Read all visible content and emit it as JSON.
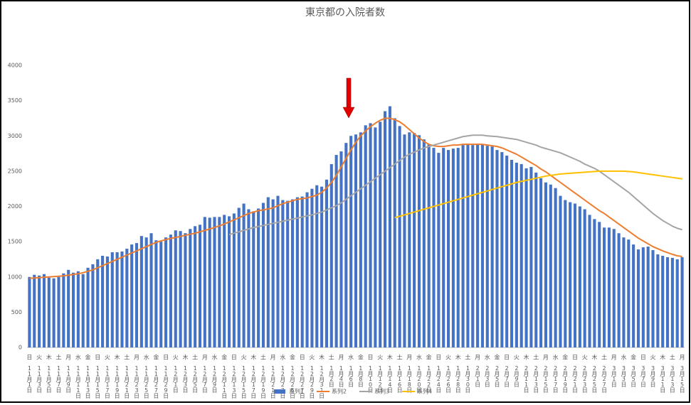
{
  "chart_data": {
    "type": "bar-line",
    "title": "東京都の入院者数",
    "categories": [
      "11月1日",
      null,
      "11月3日",
      null,
      "11月5日",
      null,
      "11月7日",
      null,
      "11月9日",
      null,
      "11月11日",
      null,
      "11月13日",
      null,
      "11月15日",
      null,
      "11月17日",
      null,
      "11月19日",
      null,
      "11月21日",
      null,
      "11月23日",
      null,
      "11月25日",
      null,
      "11月27日",
      null,
      "11月29日",
      null,
      "12月1日",
      null,
      "12月3日",
      null,
      "12月5日",
      null,
      "12月7日",
      null,
      "12月9日",
      null,
      "12月11日",
      null,
      "12月13日",
      null,
      "12月15日",
      null,
      "12月17日",
      null,
      "12月19日",
      null,
      "12月21日",
      null,
      "12月23日",
      null,
      "12月25日",
      null,
      "12月27日",
      null,
      "12月29日",
      null,
      "12月31日",
      null,
      "1月2日",
      null,
      "1月4日",
      null,
      "1月6日",
      null,
      "1月8日",
      null,
      "1月10日",
      null,
      "1月12日",
      null,
      "1月14日",
      null,
      "1月16日",
      null,
      "1月18日",
      null,
      "1月20日",
      null,
      "1月22日",
      null,
      "1月24日",
      null,
      "1月26日",
      null,
      "1月28日",
      null,
      "1月30日",
      null,
      "2月1日",
      null,
      "2月3日",
      null,
      "2月5日",
      null,
      "2月7日",
      null,
      "2月9日",
      null,
      "2月11日",
      null,
      "2月13日",
      null,
      "2月15日",
      null,
      "2月17日",
      null,
      "2月19日",
      null,
      "2月21日",
      null,
      "2月23日",
      null,
      "2月25日",
      null,
      "2月27日",
      null,
      "3月1日",
      null,
      "3月3日",
      null,
      "3月5日",
      null,
      "3月7日",
      null,
      "3月9日",
      null,
      "3月11日",
      null,
      "3月13日",
      null,
      "3月15日"
    ],
    "weekdays": [
      "日",
      null,
      "火",
      null,
      "木",
      null,
      "土",
      null,
      "月",
      null,
      "水",
      null,
      "金",
      null,
      "日",
      null,
      "火",
      null,
      "木",
      null,
      "土",
      null,
      "月",
      null,
      "水",
      null,
      "金",
      null,
      "日",
      null,
      "火",
      null,
      "木",
      null,
      "土",
      null,
      "月",
      null,
      "水",
      null,
      "金",
      null,
      "日",
      null,
      "火",
      null,
      "木",
      null,
      "土",
      null,
      "月",
      null,
      "水",
      null,
      "金",
      null,
      "日",
      null,
      "火",
      null,
      "木",
      null,
      "土",
      null,
      "月",
      null,
      "水",
      null,
      "金",
      null,
      "日",
      null,
      "火",
      null,
      "木",
      null,
      "土",
      null,
      "月",
      null,
      "水",
      null,
      "金",
      null,
      "日",
      null,
      "火",
      null,
      "木",
      null,
      "土",
      null,
      "月",
      null,
      "水",
      null,
      "金",
      null,
      "日",
      null,
      "火",
      null,
      "木",
      null,
      "土",
      null,
      "月",
      null,
      "水",
      null,
      "金",
      null,
      "日",
      null,
      "火",
      null,
      "木",
      null,
      "土",
      null,
      "月",
      null,
      "水",
      null,
      "金",
      null,
      "日",
      null,
      "火",
      null,
      "木",
      null,
      "土",
      null,
      "月"
    ],
    "series": [
      {
        "name": "系列1",
        "kind": "bar",
        "color": "#4472c4",
        "values": [
          1000,
          1030,
          1020,
          1040,
          990,
          980,
          1000,
          1050,
          1100,
          1060,
          1080,
          1040,
          1130,
          1180,
          1250,
          1300,
          1290,
          1350,
          1350,
          1360,
          1400,
          1460,
          1480,
          1580,
          1560,
          1620,
          1520,
          1500,
          1560,
          1600,
          1660,
          1650,
          1620,
          1680,
          1720,
          1740,
          1850,
          1840,
          1850,
          1850,
          1880,
          1860,
          1900,
          1980,
          2040,
          1960,
          1930,
          1970,
          2050,
          2130,
          2100,
          2150,
          2090,
          2080,
          2100,
          2130,
          2140,
          2200,
          2250,
          2300,
          2280,
          2380,
          2600,
          2730,
          2780,
          2900,
          3000,
          3020,
          3050,
          3150,
          3180,
          3120,
          3200,
          3350,
          3420,
          3250,
          3140,
          3020,
          3050,
          3040,
          3010,
          2950,
          2880,
          2830,
          2760,
          2830,
          2800,
          2820,
          2830,
          2870,
          2890,
          2870,
          2890,
          2880,
          2860,
          2850,
          2800,
          2770,
          2720,
          2660,
          2620,
          2600,
          2540,
          2560,
          2480,
          2400,
          2340,
          2310,
          2260,
          2150,
          2090,
          2060,
          2040,
          2000,
          1960,
          1880,
          1820,
          1780,
          1700,
          1700,
          1680,
          1620,
          1560,
          1530,
          1460,
          1390,
          1420,
          1430,
          1380,
          1320,
          1300,
          1280,
          1270,
          1250,
          1280
        ]
      },
      {
        "name": "系列2",
        "kind": "line",
        "color": "#ed7d31",
        "values": [
          980,
          985,
          990,
          995,
          1000,
          1005,
          1010,
          1015,
          1025,
          1035,
          1045,
          1060,
          1080,
          1100,
          1130,
          1160,
          1190,
          1220,
          1250,
          1280,
          1310,
          1340,
          1370,
          1400,
          1430,
          1460,
          1490,
          1510,
          1530,
          1545,
          1560,
          1575,
          1590,
          1605,
          1620,
          1640,
          1660,
          1680,
          1700,
          1725,
          1750,
          1780,
          1810,
          1840,
          1870,
          1900,
          1920,
          1940,
          1950,
          1965,
          1980,
          2010,
          2040,
          2060,
          2080,
          2100,
          2110,
          2120,
          2140,
          2160,
          2200,
          2260,
          2340,
          2440,
          2560,
          2680,
          2800,
          2910,
          3000,
          3070,
          3130,
          3180,
          3220,
          3250,
          3250,
          3230,
          3200,
          3150,
          3090,
          3030,
          2970,
          2920,
          2880,
          2860,
          2850,
          2850,
          2860,
          2870,
          2870,
          2880,
          2880,
          2880,
          2880,
          2880,
          2870,
          2860,
          2850,
          2830,
          2800,
          2770,
          2740,
          2700,
          2660,
          2620,
          2580,
          2530,
          2490,
          2440,
          2390,
          2340,
          2290,
          2240,
          2190,
          2140,
          2090,
          2040,
          1990,
          1940,
          1900,
          1850,
          1800,
          1750,
          1700,
          1650,
          1600,
          1550,
          1510,
          1470,
          1430,
          1400,
          1370,
          1345,
          1320,
          1300,
          1290
        ]
      },
      {
        "name": "系列3",
        "kind": "line",
        "color": "#a5a5a5",
        "values": [
          null,
          null,
          null,
          null,
          null,
          null,
          null,
          null,
          null,
          null,
          null,
          null,
          null,
          null,
          null,
          null,
          null,
          null,
          null,
          null,
          null,
          null,
          null,
          null,
          null,
          null,
          null,
          null,
          null,
          null,
          null,
          null,
          null,
          null,
          null,
          null,
          null,
          null,
          null,
          null,
          null,
          1600,
          1620,
          1640,
          1660,
          1680,
          1700,
          1715,
          1730,
          1745,
          1760,
          1775,
          1790,
          1805,
          1820,
          1835,
          1850,
          1865,
          1880,
          1900,
          1920,
          1950,
          1980,
          2010,
          2050,
          2100,
          2150,
          2200,
          2250,
          2300,
          2350,
          2400,
          2450,
          2500,
          2550,
          2600,
          2650,
          2700,
          2740,
          2770,
          2800,
          2830,
          2850,
          2870,
          2890,
          2910,
          2930,
          2950,
          2970,
          2990,
          3000,
          3010,
          3010,
          3010,
          3000,
          2995,
          2990,
          2980,
          2970,
          2960,
          2950,
          2930,
          2910,
          2890,
          2870,
          2840,
          2820,
          2800,
          2780,
          2760,
          2730,
          2700,
          2670,
          2640,
          2600,
          2570,
          2540,
          2500,
          2450,
          2400,
          2350,
          2300,
          2250,
          2200,
          2140,
          2080,
          2020,
          1960,
          1900,
          1850,
          1800,
          1760,
          1720,
          1690,
          1670
        ]
      },
      {
        "name": "系列4",
        "kind": "line",
        "color": "#ffc000",
        "values": [
          null,
          null,
          null,
          null,
          null,
          null,
          null,
          null,
          null,
          null,
          null,
          null,
          null,
          null,
          null,
          null,
          null,
          null,
          null,
          null,
          null,
          null,
          null,
          null,
          null,
          null,
          null,
          null,
          null,
          null,
          null,
          null,
          null,
          null,
          null,
          null,
          null,
          null,
          null,
          null,
          null,
          null,
          null,
          null,
          null,
          null,
          null,
          null,
          null,
          null,
          null,
          null,
          null,
          null,
          null,
          null,
          null,
          null,
          null,
          null,
          null,
          null,
          null,
          null,
          null,
          null,
          null,
          null,
          null,
          null,
          null,
          null,
          null,
          null,
          null,
          1840,
          1860,
          1880,
          1900,
          1920,
          1940,
          1960,
          1980,
          2000,
          2020,
          2040,
          2060,
          2080,
          2100,
          2120,
          2140,
          2160,
          2180,
          2200,
          2220,
          2240,
          2260,
          2280,
          2300,
          2320,
          2340,
          2355,
          2370,
          2385,
          2400,
          2415,
          2430,
          2440,
          2450,
          2460,
          2465,
          2470,
          2475,
          2480,
          2485,
          2490,
          2495,
          2500,
          2500,
          2500,
          2500,
          2500,
          2500,
          2495,
          2490,
          2480,
          2470,
          2460,
          2450,
          2440,
          2430,
          2420,
          2410,
          2400,
          2390
        ]
      }
    ],
    "ylim": [
      0,
      4000
    ],
    "yticks": [
      0,
      500,
      1000,
      1500,
      2000,
      2500,
      3000,
      3500,
      4000
    ],
    "grid": false
  }
}
